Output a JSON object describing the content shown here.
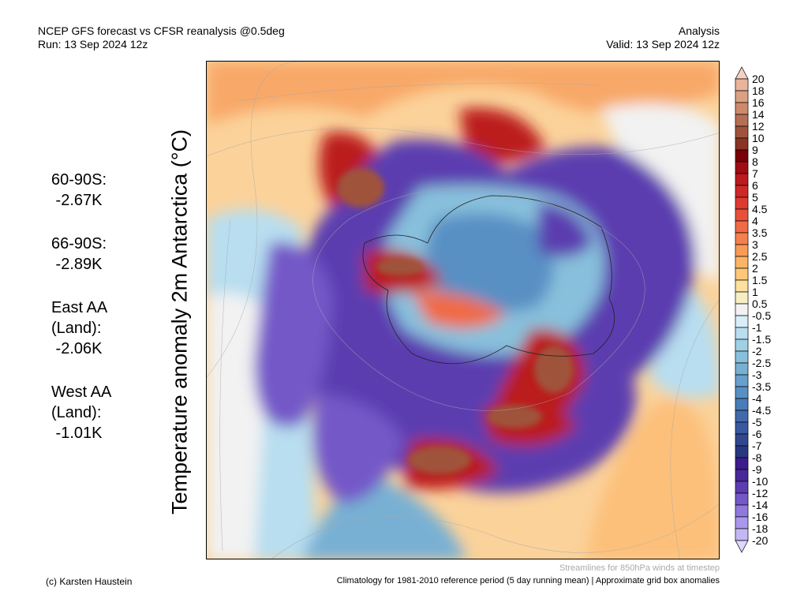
{
  "header": {
    "title": "NCEP GFS forecast vs CFSR reanalysis @0.5deg",
    "run": "Run: 13 Sep 2024 12z",
    "mode": "Analysis",
    "valid": "Valid: 13 Sep 2024 12z"
  },
  "map_title": "Temperature anomaly 2m Antarctica (°C)",
  "stats": [
    {
      "label": "60-90S:",
      "value": " -2.67K"
    },
    {
      "label": "66-90S:",
      "value": " -2.89K"
    },
    {
      "label": "East AA\n(Land):",
      "value": " -2.06K"
    },
    {
      "label": "West AA\n(Land):",
      "value": " -1.01K"
    }
  ],
  "colorbar": {
    "labels": [
      "20",
      "18",
      "16",
      "14",
      "12",
      "10",
      "9",
      "8",
      "7",
      "6",
      "5",
      "4.5",
      "4",
      "3.5",
      "3",
      "2.5",
      "2",
      "1.5",
      "1",
      "0.5",
      "-0.5",
      "-1",
      "-1.5",
      "-2",
      "-2.5",
      "-3",
      "-3.5",
      "-4",
      "-4.5",
      "-5",
      "-6",
      "-7",
      "-8",
      "-9",
      "-10",
      "-12",
      "-14",
      "-16",
      "-18",
      "-20"
    ],
    "colors": [
      "#e8b49a",
      "#dba082",
      "#cd8a6b",
      "#b66f52",
      "#a0533b",
      "#8a3424",
      "#7a0008",
      "#a00c14",
      "#bb1a1e",
      "#cf2828",
      "#dd3a30",
      "#e8503a",
      "#f06a44",
      "#f5804e",
      "#f89a58",
      "#fbb466",
      "#fdc878",
      "#fde09c",
      "#f8eec4",
      "#f2f2f2",
      "#d8eef8",
      "#b8def0",
      "#a0d0e6",
      "#88c0dc",
      "#78b0d4",
      "#68a0cc",
      "#5890c4",
      "#4a7cb8",
      "#406aac",
      "#3858a0",
      "#304890",
      "#283880",
      "#3c1c88",
      "#482898",
      "#5c3cb0",
      "#7458c8",
      "#9078dc",
      "#aa98ec",
      "#c4b8f4"
    ],
    "over_color": "#f8d0c0",
    "under_color": "#dcd8fc"
  },
  "footer": {
    "streamlines": "Streamlines for 850hPa winds at timestep",
    "climatology": "Climatology for 1981-2010 reference period (5 day running mean) | Approximate grid box anomalies",
    "credit": "(c) Karsten Haustein"
  }
}
